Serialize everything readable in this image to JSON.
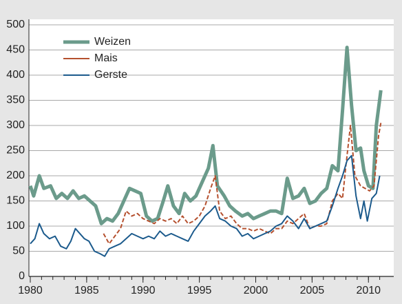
{
  "chart_data": {
    "type": "line",
    "xlim": [
      1980,
      2012
    ],
    "xticks": [
      1980,
      1985,
      1990,
      1995,
      2000,
      2005,
      2010
    ],
    "xminorticks": [
      1980,
      1981,
      1982,
      1983,
      1984,
      1985,
      1986,
      1987,
      1988,
      1989,
      1990,
      1991,
      1992,
      1993,
      1994,
      1995,
      1996,
      1997,
      1998,
      1999,
      2000,
      2001,
      2002,
      2003,
      2004,
      2005,
      2006,
      2007,
      2008,
      2009,
      2010,
      2011
    ],
    "ylim": [
      0,
      500
    ],
    "yticks": [
      0,
      50,
      100,
      150,
      200,
      250,
      300,
      350,
      400,
      450,
      500
    ],
    "grid": true,
    "legend": "upper left",
    "series": [
      {
        "name": "Weizen",
        "color": "#6b9b8b",
        "dash": false,
        "x": [
          1980,
          1980.3,
          1980.8,
          1981.2,
          1981.8,
          1982.3,
          1982.8,
          1983.3,
          1983.8,
          1984.3,
          1984.8,
          1985.3,
          1985.8,
          1986.3,
          1986.8,
          1987.3,
          1987.8,
          1988.3,
          1988.8,
          1989.3,
          1989.8,
          1990.3,
          1990.8,
          1991.3,
          1991.8,
          1992.2,
          1992.7,
          1993.2,
          1993.7,
          1994.2,
          1994.7,
          1995.3,
          1995.8,
          1996.2,
          1996.6,
          1997.2,
          1997.7,
          1998.2,
          1998.8,
          1999.3,
          1999.8,
          2000.3,
          2000.8,
          2001.3,
          2001.8,
          2002.3,
          2002.8,
          2003.3,
          2003.8,
          2004.3,
          2004.8,
          2005.3,
          2005.8,
          2006.3,
          2006.8,
          2007.3,
          2007.7,
          2008.1,
          2008.5,
          2008.9,
          2009.3,
          2009.6,
          2010.0,
          2010.4,
          2010.7,
          2011.1
        ],
        "values": [
          180,
          160,
          200,
          175,
          180,
          155,
          165,
          155,
          170,
          155,
          160,
          150,
          140,
          105,
          115,
          110,
          125,
          150,
          175,
          170,
          165,
          120,
          110,
          115,
          150,
          180,
          140,
          125,
          165,
          150,
          160,
          190,
          215,
          260,
          180,
          160,
          140,
          130,
          120,
          125,
          115,
          120,
          125,
          130,
          130,
          125,
          195,
          155,
          160,
          175,
          145,
          150,
          165,
          175,
          220,
          210,
          330,
          455,
          340,
          250,
          255,
          210,
          180,
          175,
          300,
          370
        ]
      },
      {
        "name": "Mais",
        "color": "#b5502e",
        "dash": true,
        "x": [
          1986.5,
          1987,
          1987.5,
          1988,
          1988.5,
          1989,
          1989.5,
          1990,
          1990.5,
          1991,
          1991.5,
          1992,
          1992.5,
          1993,
          1993.5,
          1994,
          1994.5,
          1995,
          1995.5,
          1996,
          1996.4,
          1996.8,
          1997.3,
          1997.8,
          1998.3,
          1998.8,
          1999.3,
          1999.8,
          2000.3,
          2000.8,
          2001.3,
          2001.8,
          2002.3,
          2002.8,
          2003.3,
          2003.8,
          2004.3,
          2004.8,
          2005.3,
          2005.8,
          2006.3,
          2006.8,
          2007.3,
          2007.7,
          2008.0,
          2008.4,
          2008.8,
          2009.3,
          2009.7,
          2010.1,
          2010.5,
          2010.9,
          2011.1
        ],
        "values": [
          85,
          65,
          80,
          95,
          130,
          120,
          125,
          115,
          110,
          105,
          115,
          110,
          115,
          105,
          120,
          105,
          110,
          120,
          140,
          175,
          200,
          130,
          115,
          120,
          105,
          95,
          95,
          90,
          95,
          90,
          85,
          95,
          95,
          110,
          105,
          115,
          125,
          95,
          100,
          100,
          105,
          150,
          165,
          155,
          220,
          300,
          200,
          180,
          175,
          170,
          180,
          280,
          305
        ]
      },
      {
        "name": "Gerste",
        "color": "#1b5a8c",
        "dash": false,
        "x": [
          1980,
          1980.4,
          1980.8,
          1981.2,
          1981.7,
          1982.2,
          1982.7,
          1983.2,
          1983.6,
          1984.0,
          1984.4,
          1984.8,
          1985.2,
          1985.7,
          1986.2,
          1986.6,
          1987.0,
          1987.5,
          1988.0,
          1988.5,
          1989.0,
          1989.5,
          1990.0,
          1990.5,
          1991.0,
          1991.5,
          1992.0,
          1992.5,
          1993.0,
          1993.5,
          1994.0,
          1994.5,
          1995.0,
          1995.5,
          1996.0,
          1996.4,
          1996.8,
          1997.3,
          1997.8,
          1998.3,
          1998.8,
          1999.3,
          1999.8,
          2000.3,
          2000.8,
          2001.3,
          2001.8,
          2002.3,
          2002.8,
          2003.3,
          2003.8,
          2004.3,
          2004.8,
          2005.3,
          2005.8,
          2006.3,
          2006.8,
          2007.3,
          2007.7,
          2008.1,
          2008.5,
          2008.9,
          2009.3,
          2009.6,
          2009.9,
          2010.3,
          2010.7,
          2011.0
        ],
        "values": [
          65,
          75,
          105,
          85,
          75,
          80,
          60,
          55,
          70,
          95,
          85,
          75,
          70,
          50,
          45,
          40,
          55,
          60,
          65,
          75,
          85,
          80,
          75,
          80,
          75,
          90,
          80,
          85,
          80,
          75,
          70,
          90,
          105,
          120,
          130,
          140,
          115,
          110,
          100,
          95,
          80,
          85,
          75,
          80,
          85,
          90,
          100,
          105,
          120,
          110,
          95,
          115,
          95,
          100,
          105,
          110,
          140,
          175,
          200,
          230,
          240,
          160,
          115,
          150,
          110,
          155,
          165,
          200
        ]
      }
    ]
  }
}
